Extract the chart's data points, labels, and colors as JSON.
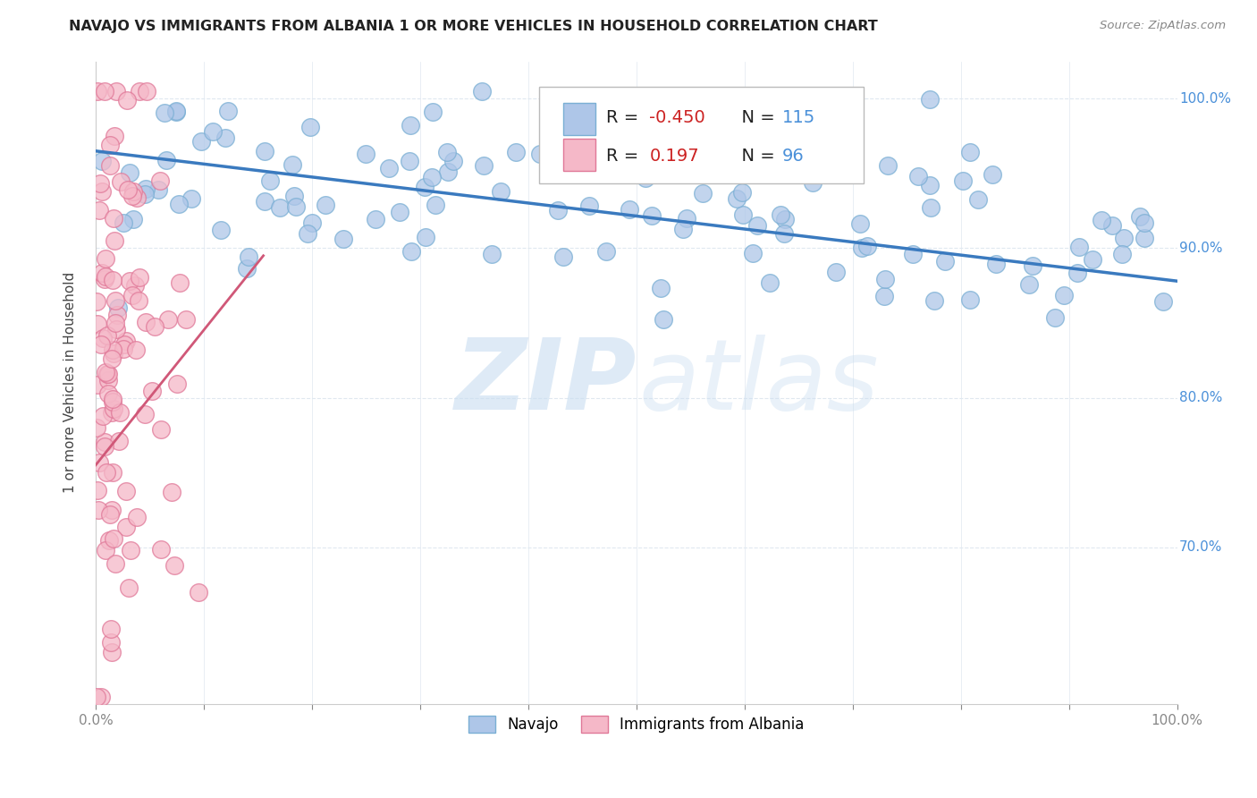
{
  "title": "NAVAJO VS IMMIGRANTS FROM ALBANIA 1 OR MORE VEHICLES IN HOUSEHOLD CORRELATION CHART",
  "source": "Source: ZipAtlas.com",
  "ylabel": "1 or more Vehicles in Household",
  "xlim": [
    0.0,
    1.0
  ],
  "ylim": [
    0.595,
    1.025
  ],
  "yticks": [
    0.7,
    0.8,
    0.9,
    1.0
  ],
  "ytick_labels": [
    "70.0%",
    "80.0%",
    "90.0%",
    "100.0%"
  ],
  "xticks": [
    0.0,
    0.1,
    0.2,
    0.3,
    0.4,
    0.5,
    0.6,
    0.7,
    0.8,
    0.9,
    1.0
  ],
  "xtick_labels": [
    "0.0%",
    "",
    "",
    "",
    "",
    "",
    "",
    "",
    "",
    "",
    "100.0%"
  ],
  "legend_label1": "Navajo",
  "legend_label2": "Immigrants from Albania",
  "navajo_R": -0.45,
  "navajo_N": 115,
  "albania_R": 0.197,
  "albania_N": 96,
  "navajo_color": "#aec6e8",
  "navajo_edge": "#7aafd4",
  "albania_color": "#f5b8c8",
  "albania_edge": "#e07898",
  "trend_navajo_color": "#3a7abf",
  "trend_albania_color": "#d05878",
  "watermark_zip": "ZIP",
  "watermark_atlas": "atlas",
  "background_color": "#ffffff",
  "grid_color": "#e0e8f0",
  "tick_color": "#4a90d9",
  "navajo_trend_x0": 0.0,
  "navajo_trend_x1": 1.0,
  "navajo_trend_y0": 0.965,
  "navajo_trend_y1": 0.878,
  "albania_trend_x0": 0.0,
  "albania_trend_x1": 0.155,
  "albania_trend_y0": 0.755,
  "albania_trend_y1": 0.895
}
